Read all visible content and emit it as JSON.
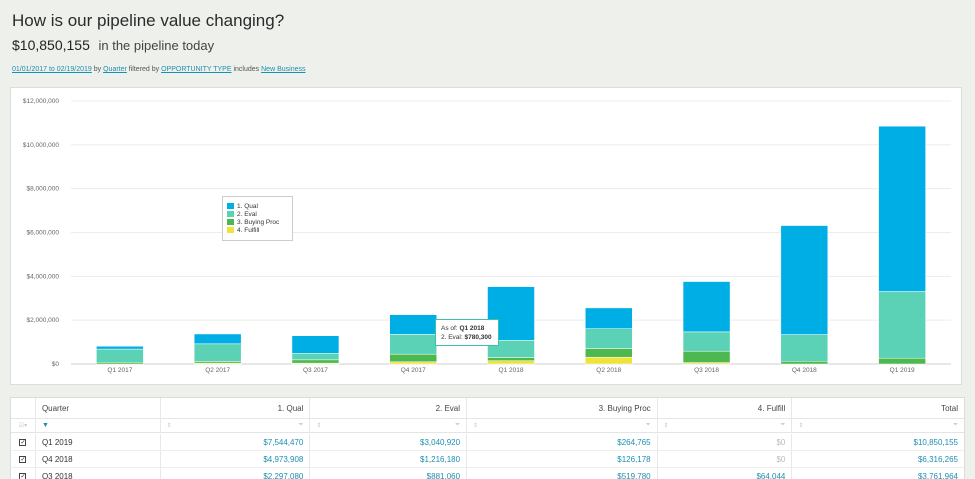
{
  "header": {
    "title": "How is our pipeline value changing?",
    "amount": "$10,850,155",
    "amount_suffix": "in the pipeline today"
  },
  "filters": {
    "date_range": "01/01/2017 to 02/19/2019",
    "by_word": "by",
    "group": "Quarter",
    "filtered_by": "filtered by",
    "field": "OPPORTUNITY TYPE",
    "includes": "includes",
    "value": "New Business"
  },
  "colors": {
    "qual": "#00aee6",
    "eval": "#5bd2b5",
    "buying": "#4cb84f",
    "fulfill": "#efe33b"
  },
  "chart_data": {
    "type": "bar",
    "stacked": true,
    "title": "",
    "xlabel": "",
    "ylabel": "",
    "ylim": [
      0,
      12000000
    ],
    "yticks": [
      0,
      2000000,
      4000000,
      6000000,
      8000000,
      10000000,
      12000000
    ],
    "ytick_labels": [
      "$0",
      "$2,000,000",
      "$4,000,000",
      "$6,000,000",
      "$8,000,000",
      "$10,000,000",
      "$12,000,000"
    ],
    "categories": [
      "Q1 2017",
      "Q2 2017",
      "Q3 2017",
      "Q4 2017",
      "Q1 2018",
      "Q2 2018",
      "Q3 2018",
      "Q4 2018",
      "Q1 2019"
    ],
    "series": [
      {
        "name": "4. Fulfill",
        "key": "fulfill",
        "values": [
          0,
          40000,
          40000,
          100000,
          150000,
          310000,
          64044,
          0,
          0
        ]
      },
      {
        "name": "3. Buying Proc",
        "key": "buying",
        "values": [
          80000,
          80000,
          150000,
          350000,
          150000,
          400000,
          519780,
          126178,
          264765
        ]
      },
      {
        "name": "2. Eval",
        "key": "eval",
        "values": [
          600000,
          800000,
          300000,
          900000,
          780300,
          900000,
          881060,
          1216180,
          3040920
        ]
      },
      {
        "name": "1. Qual",
        "key": "qual",
        "values": [
          130000,
          450000,
          800000,
          900000,
          2450000,
          950000,
          2297080,
          4973908,
          7544470
        ]
      }
    ],
    "legend_position": "upper-left",
    "legend": [
      "1. Qual",
      "2. Eval",
      "3. Buying Proc",
      "4. Fulfill"
    ],
    "tooltip": {
      "as_of_label": "As of:",
      "as_of_value": "Q1 2018",
      "series_label": "2. Eval:",
      "series_value": "$780,300"
    }
  },
  "table": {
    "columns": [
      "Quarter",
      "1. Qual",
      "2. Eval",
      "3. Buying Proc",
      "4. Fulfill",
      "Total"
    ],
    "rows": [
      {
        "quarter": "Q1 2019",
        "qual": "$7,544,470",
        "eval": "$3,040,920",
        "buying": "$264,765",
        "fulfill": "$0",
        "total": "$10,850,155"
      },
      {
        "quarter": "Q4 2018",
        "qual": "$4,973,908",
        "eval": "$1,216,180",
        "buying": "$126,178",
        "fulfill": "$0",
        "total": "$6,316,265"
      },
      {
        "quarter": "Q3 2018",
        "qual": "$2,297,080",
        "eval": "$881,060",
        "buying": "$519,780",
        "fulfill": "$64,044",
        "total": "$3,761,964"
      }
    ]
  }
}
